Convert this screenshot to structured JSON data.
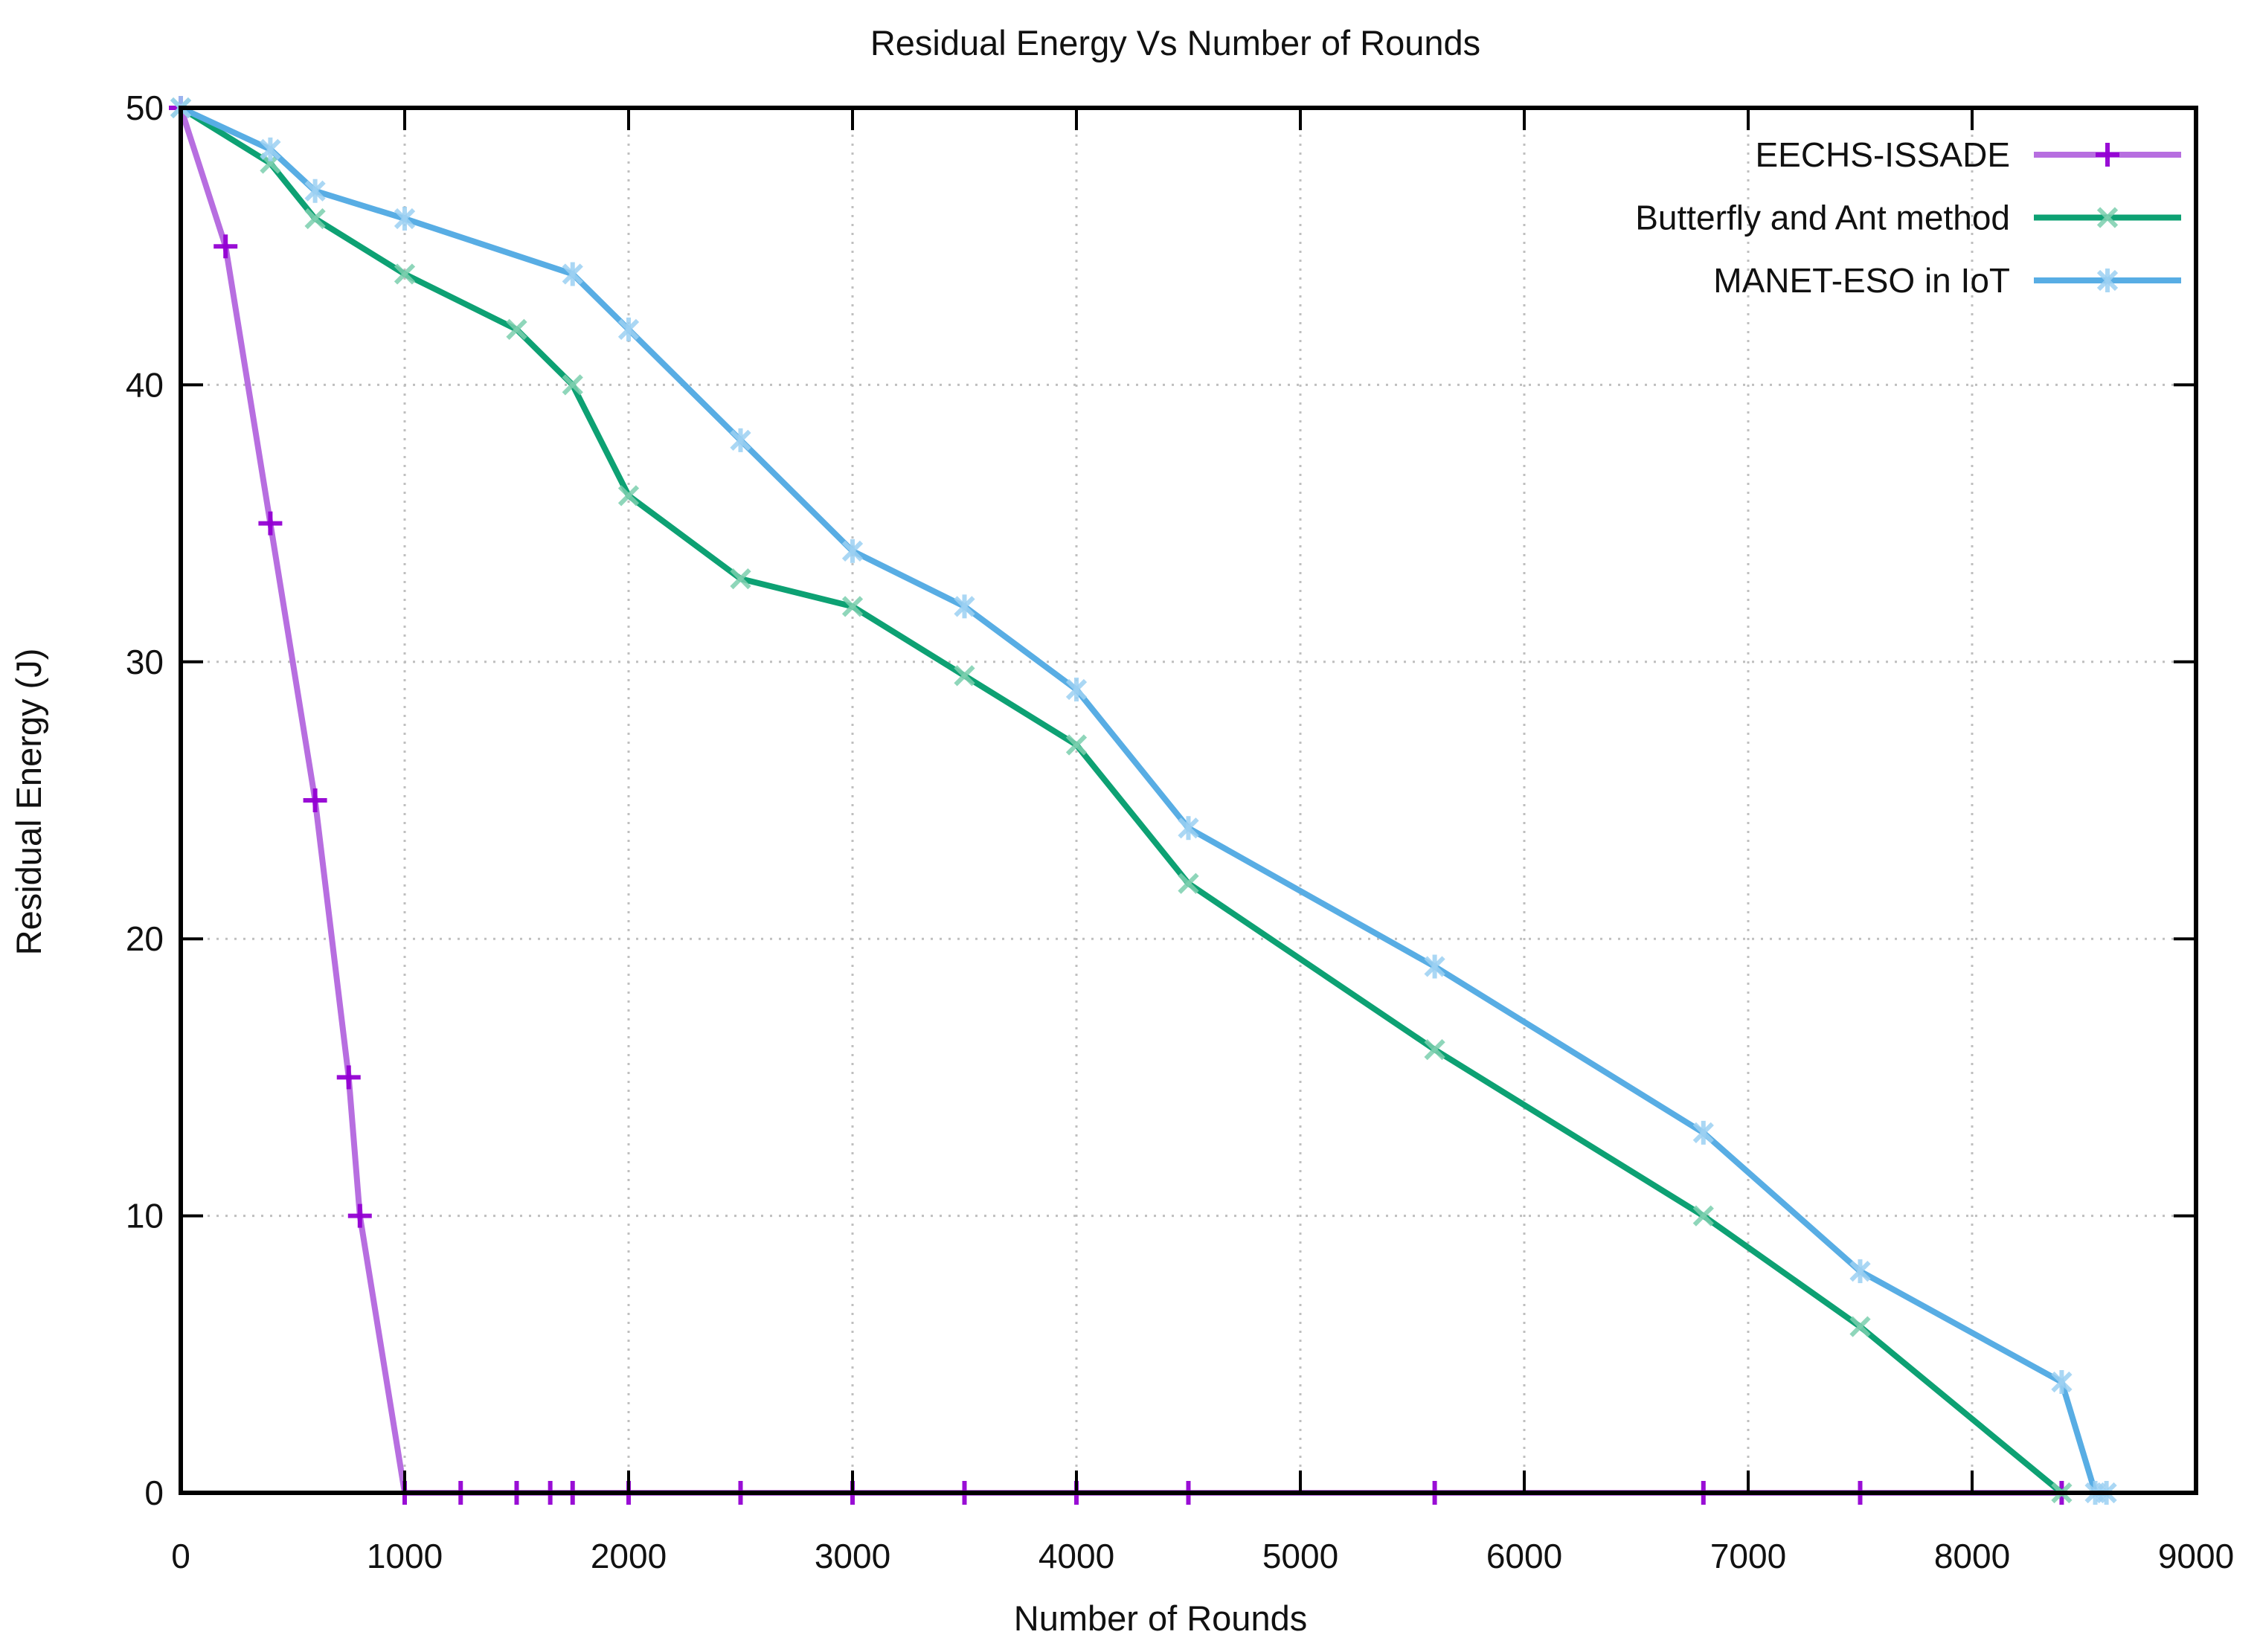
{
  "title": "Residual Energy Vs Number of Rounds",
  "chart_data": {
    "type": "line",
    "title": "Residual Energy Vs Number of Rounds",
    "xlabel": "Number of  Rounds",
    "ylabel": "Residual  Energy (J)",
    "xlim": [
      0,
      9000
    ],
    "ylim": [
      0,
      50
    ],
    "x_ticks": [
      0,
      1000,
      2000,
      3000,
      4000,
      5000,
      6000,
      7000,
      8000,
      9000
    ],
    "y_ticks": [
      0,
      10,
      20,
      30,
      40,
      50
    ],
    "grid": "dotted",
    "grid_color": "#bfbfbf",
    "axis_color": "#000000",
    "legend_position": "top-right",
    "series": [
      {
        "name": "EECHS-ISSADE",
        "line_color": "#b76ee0",
        "marker_color": "#9400d3",
        "marker": "plus",
        "marker_opacity": 0.95,
        "points": [
          [
            0,
            50
          ],
          [
            200,
            45
          ],
          [
            400,
            35
          ],
          [
            600,
            25
          ],
          [
            750,
            15
          ],
          [
            800,
            10
          ],
          [
            1000,
            0
          ],
          [
            1250,
            0
          ],
          [
            1500,
            0
          ],
          [
            1650,
            0
          ],
          [
            1750,
            0
          ],
          [
            2000,
            0
          ],
          [
            2500,
            0
          ],
          [
            3000,
            0
          ],
          [
            3500,
            0
          ],
          [
            4000,
            0
          ],
          [
            4500,
            0
          ],
          [
            5600,
            0
          ],
          [
            6800,
            0
          ],
          [
            7500,
            0
          ],
          [
            8400,
            0
          ]
        ]
      },
      {
        "name": "Butterfly and Ant method",
        "line_color": "#0da173",
        "marker_color": "#7bcfae",
        "marker": "cross",
        "marker_opacity": 0.85,
        "points": [
          [
            0,
            50
          ],
          [
            400,
            48
          ],
          [
            600,
            46
          ],
          [
            1000,
            44
          ],
          [
            1500,
            42
          ],
          [
            1750,
            40
          ],
          [
            2000,
            36
          ],
          [
            2500,
            33
          ],
          [
            3000,
            32
          ],
          [
            3500,
            29.5
          ],
          [
            4000,
            27
          ],
          [
            4500,
            22
          ],
          [
            5600,
            16
          ],
          [
            6800,
            10
          ],
          [
            7500,
            6
          ],
          [
            8400,
            0
          ]
        ]
      },
      {
        "name": "MANET-ESO in IoT",
        "line_color": "#58ade4",
        "marker_color": "#9bd0f2",
        "marker": "asterisk",
        "marker_opacity": 0.85,
        "points": [
          [
            0,
            50
          ],
          [
            400,
            48.5
          ],
          [
            600,
            47
          ],
          [
            1000,
            46
          ],
          [
            1750,
            44
          ],
          [
            2000,
            42
          ],
          [
            2500,
            38
          ],
          [
            3000,
            34
          ],
          [
            3500,
            32
          ],
          [
            4000,
            29
          ],
          [
            4500,
            24
          ],
          [
            5600,
            19
          ],
          [
            6800,
            13
          ],
          [
            7500,
            8
          ],
          [
            8400,
            4
          ],
          [
            8550,
            0
          ],
          [
            8600,
            0
          ]
        ]
      }
    ]
  }
}
